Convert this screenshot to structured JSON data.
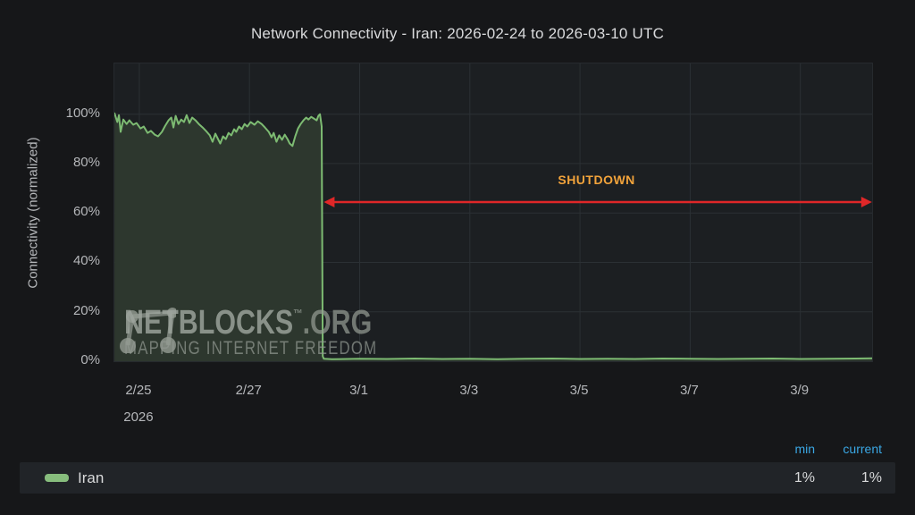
{
  "title": "Network Connectivity - Iran: 2026-02-24 to 2026-03-10 UTC",
  "watermark": {
    "brand": "NETBLOCKS",
    "tm": "™",
    "suffix": ".ORG",
    "tagline": "MAPPING INTERNET FREEDOM"
  },
  "legend": {
    "headers": {
      "min": "min",
      "current": "current"
    },
    "rows": [
      {
        "label": "Iran",
        "color": "#87bd7d",
        "min": "1%",
        "current": "1%"
      }
    ]
  },
  "colors": {
    "page_bg": "#161719",
    "plot_bg": "#1c1f22",
    "grid": "#2b3034",
    "line_green": "#7dbb72",
    "area_fill": "#2d372e",
    "arrow_red": "#e02728",
    "annotation_orange": "#f2a33b",
    "header_blue": "#3aa7e4",
    "axis_text": "#b5b7ba"
  },
  "chart_data": {
    "type": "area",
    "title": "Network Connectivity - Iran: 2026-02-24 to 2026-03-10 UTC",
    "xlabel": "",
    "ylabel": "Connectivity (normalized)",
    "x_unit": "days since 2026-02-24 00:00 UTC",
    "xlim": [
      0.547,
      14.303
    ],
    "ylim": [
      0,
      120.5
    ],
    "grid": true,
    "legend_position": "bottom",
    "x_ticks": {
      "values": [
        1,
        3,
        5,
        7,
        9,
        11,
        13
      ],
      "labels": [
        "2/25",
        "2/27",
        "3/1",
        "3/3",
        "3/5",
        "3/7",
        "3/9"
      ]
    },
    "x_year_label": "2026",
    "y_ticks": {
      "values": [
        0,
        20,
        40,
        60,
        80,
        100
      ],
      "labels": [
        "0%",
        "20%",
        "40%",
        "60%",
        "80%",
        "100%"
      ]
    },
    "series": [
      {
        "name": "Iran",
        "color": "#7dbb72",
        "fill": "#2d372e",
        "min": "1%",
        "current": "1%",
        "points": [
          [
            0.55,
            100.3
          ],
          [
            0.6,
            96.8
          ],
          [
            0.63,
            99.6
          ],
          [
            0.66,
            92.8
          ],
          [
            0.71,
            97.8
          ],
          [
            0.77,
            96.0
          ],
          [
            0.82,
            97.5
          ],
          [
            0.89,
            95.7
          ],
          [
            0.95,
            96.4
          ],
          [
            1.02,
            94.2
          ],
          [
            1.08,
            95.0
          ],
          [
            1.15,
            92.4
          ],
          [
            1.21,
            93.2
          ],
          [
            1.28,
            91.7
          ],
          [
            1.34,
            91.0
          ],
          [
            1.41,
            92.8
          ],
          [
            1.47,
            95.3
          ],
          [
            1.53,
            97.5
          ],
          [
            1.58,
            98.6
          ],
          [
            1.62,
            94.6
          ],
          [
            1.66,
            99.3
          ],
          [
            1.71,
            96.0
          ],
          [
            1.76,
            97.8
          ],
          [
            1.81,
            96.8
          ],
          [
            1.86,
            99.6
          ],
          [
            1.91,
            96.4
          ],
          [
            1.96,
            98.6
          ],
          [
            2.02,
            97.5
          ],
          [
            2.08,
            96.0
          ],
          [
            2.15,
            94.6
          ],
          [
            2.21,
            93.2
          ],
          [
            2.28,
            91.4
          ],
          [
            2.33,
            88.8
          ],
          [
            2.38,
            92.1
          ],
          [
            2.42,
            90.3
          ],
          [
            2.47,
            88.1
          ],
          [
            2.52,
            91.0
          ],
          [
            2.57,
            89.9
          ],
          [
            2.62,
            92.4
          ],
          [
            2.67,
            91.4
          ],
          [
            2.72,
            93.9
          ],
          [
            2.76,
            92.8
          ],
          [
            2.81,
            95.0
          ],
          [
            2.86,
            93.9
          ],
          [
            2.91,
            96.0
          ],
          [
            2.96,
            95.0
          ],
          [
            3.02,
            96.8
          ],
          [
            3.09,
            95.7
          ],
          [
            3.15,
            97.1
          ],
          [
            3.22,
            96.0
          ],
          [
            3.28,
            94.6
          ],
          [
            3.35,
            92.8
          ],
          [
            3.4,
            90.6
          ],
          [
            3.44,
            92.4
          ],
          [
            3.49,
            88.8
          ],
          [
            3.54,
            91.4
          ],
          [
            3.59,
            89.6
          ],
          [
            3.64,
            91.7
          ],
          [
            3.69,
            89.9
          ],
          [
            3.73,
            88.1
          ],
          [
            3.78,
            87.1
          ],
          [
            3.83,
            91.0
          ],
          [
            3.88,
            94.2
          ],
          [
            3.93,
            96.0
          ],
          [
            3.98,
            97.5
          ],
          [
            4.03,
            98.6
          ],
          [
            4.07,
            97.8
          ],
          [
            4.12,
            98.9
          ],
          [
            4.17,
            98.2
          ],
          [
            4.22,
            97.5
          ],
          [
            4.25,
            99.3
          ],
          [
            4.28,
            100.0
          ],
          [
            4.31,
            95.0
          ],
          [
            4.33,
            2.0
          ],
          [
            4.35,
            1.0
          ],
          [
            4.5,
            0.8
          ],
          [
            5.0,
            1.0
          ],
          [
            5.5,
            0.9
          ],
          [
            6.0,
            1.1
          ],
          [
            6.5,
            0.9
          ],
          [
            7.0,
            1.0
          ],
          [
            7.5,
            0.8
          ],
          [
            8.0,
            1.0
          ],
          [
            8.5,
            1.1
          ],
          [
            9.0,
            0.9
          ],
          [
            9.5,
            1.0
          ],
          [
            10.0,
            0.9
          ],
          [
            10.5,
            1.1
          ],
          [
            11.0,
            1.0
          ],
          [
            11.5,
            0.9
          ],
          [
            12.0,
            1.0
          ],
          [
            12.5,
            1.1
          ],
          [
            13.0,
            0.9
          ],
          [
            13.5,
            1.0
          ],
          [
            14.0,
            1.1
          ],
          [
            14.3,
            1.2
          ]
        ]
      }
    ],
    "annotation": {
      "label": "SHUTDOWN",
      "color": "#f2a33b",
      "arrow_color": "#e02728",
      "x_start": 4.35,
      "x_end": 14.3,
      "y": 64.4,
      "label_x": 9.3,
      "label_y": 73.5
    }
  }
}
